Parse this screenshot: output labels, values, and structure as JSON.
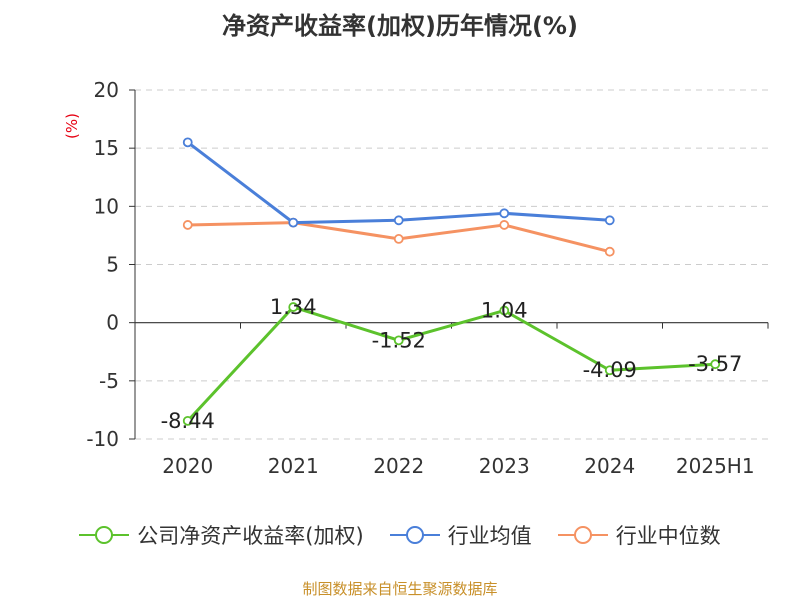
{
  "chart_data": {
    "type": "line",
    "title": "净资产收益率(加权)历年情况(%)",
    "ylabel": "(%)",
    "categories": [
      "2020",
      "2021",
      "2022",
      "2023",
      "2024",
      "2025H1"
    ],
    "ylim": [
      -10,
      20
    ],
    "yticks": [
      20,
      15,
      10,
      5,
      0,
      -5,
      -10
    ],
    "grid": true,
    "legend_position": "bottom",
    "series": [
      {
        "name": "公司净资产收益率(加权)",
        "color": "#5cc22c",
        "values": [
          -8.44,
          1.34,
          -1.52,
          1.04,
          -4.09,
          -3.57
        ],
        "labels": [
          "-8.44",
          "1.34",
          "-1.52",
          "1.04",
          "-4.09",
          "-3.57"
        ]
      },
      {
        "name": "行业均值",
        "color": "#4a7fd9",
        "values": [
          15.5,
          8.6,
          8.8,
          9.4,
          8.8,
          null
        ]
      },
      {
        "name": "行业中位数",
        "color": "#f59262",
        "values": [
          8.4,
          8.6,
          7.2,
          8.4,
          6.1,
          null
        ]
      }
    ]
  },
  "source": "制图数据来自恒生聚源数据库"
}
